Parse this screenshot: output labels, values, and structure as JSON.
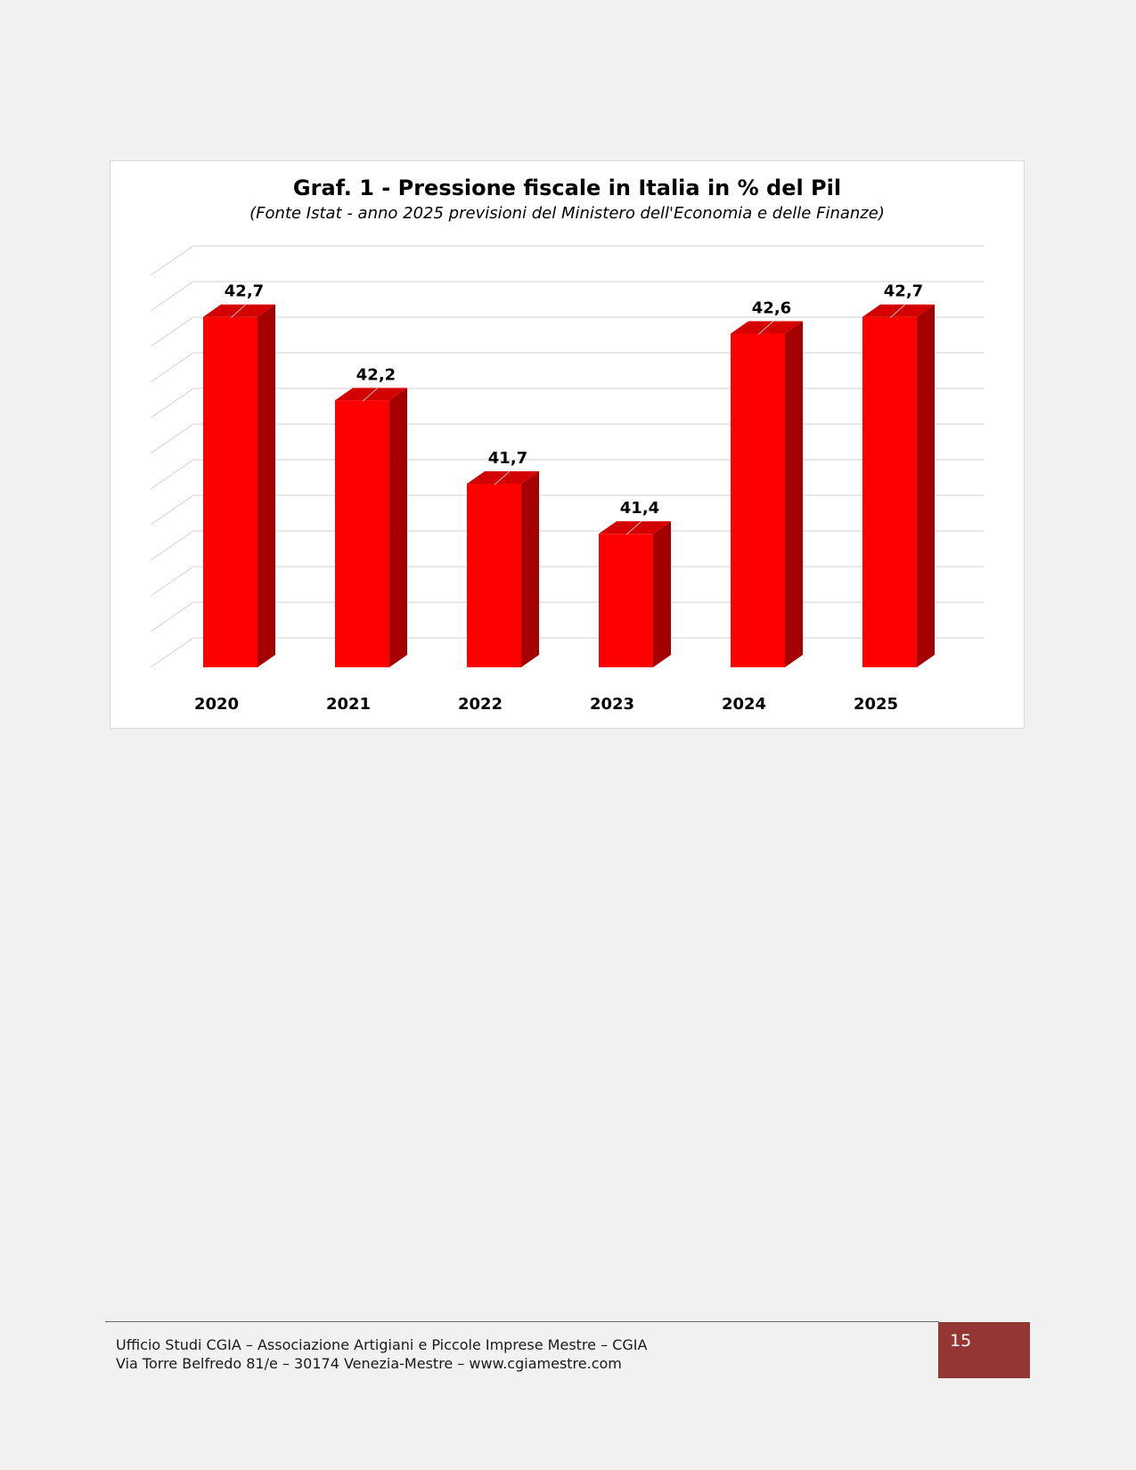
{
  "chart_data": {
    "type": "bar",
    "title": "Graf. 1 - Pressione fiscale in Italia in % del Pil",
    "subtitle": "(Fonte Istat - anno 2025 previsioni del Ministero dell'Economia e delle Finanze)",
    "categories": [
      "2020",
      "2021",
      "2022",
      "2023",
      "2024",
      "2025"
    ],
    "values": [
      42.7,
      42.2,
      41.7,
      41.4,
      42.6,
      42.7
    ],
    "data_labels": [
      "42,7",
      "42,2",
      "41,7",
      "41,4",
      "42,6",
      "42,7"
    ],
    "xlabel": "",
    "ylabel": "",
    "ylim": [
      40.6,
      42.8
    ],
    "grid": true,
    "three_d": true,
    "legend": "none",
    "colors": {
      "bar_front": "#ff0000",
      "bar_side": "#a50000",
      "bar_top": "#d40000",
      "grid": "#d0d0d0"
    }
  },
  "footer": {
    "line1": "Ufficio Studi CGIA – Associazione Artigiani e Piccole Imprese Mestre – CGIA",
    "line2": "Via Torre Belfredo 81/e – 30174 Venezia-Mestre – www.cgiamestre.com",
    "page_number": "15",
    "accent_color": "#943634"
  }
}
